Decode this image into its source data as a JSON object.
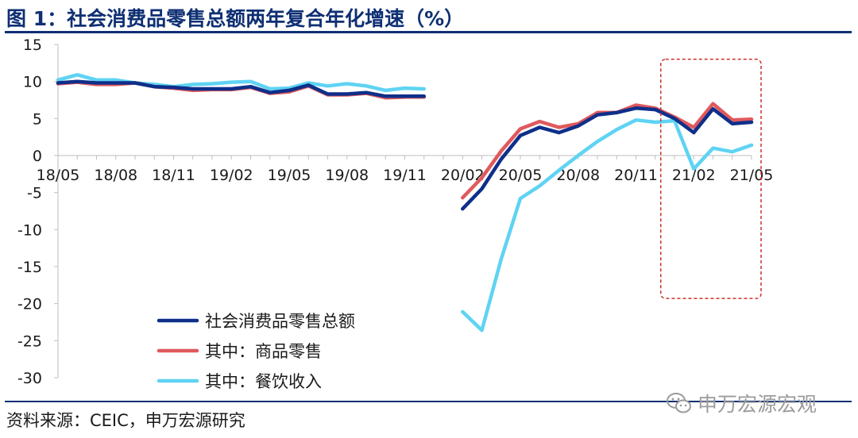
{
  "figure": {
    "title": "图 1：社会消费品零售总额两年复合年化增速（%）",
    "source": "资料来源：CEIC，申万宏源研究",
    "watermark": "申万宏源宏观"
  },
  "colors": {
    "title": "#0e2f73",
    "series_total": "#0e2f8a",
    "series_goods": "#e0595d",
    "series_catering": "#5fd3f3",
    "highlight_box": "#c9302c",
    "grid": "#d9d9d9"
  },
  "chart_data": {
    "type": "line",
    "title": "社会消费品零售总额两年复合年化增速（%）",
    "xlabel": "",
    "ylabel": "",
    "ylim": [
      -30,
      15
    ],
    "yticks": [
      15,
      10,
      5,
      0,
      -5,
      -10,
      -15,
      -20,
      -25,
      -30
    ],
    "grid": false,
    "legend_position": "bottom-left",
    "x": [
      "18/05",
      "18/06",
      "18/07",
      "18/08",
      "18/09",
      "18/10",
      "18/11",
      "18/12",
      "19/01",
      "19/02",
      "19/03",
      "19/04",
      "19/05",
      "19/06",
      "19/07",
      "19/08",
      "19/09",
      "19/10",
      "19/11",
      "19/12",
      "20/01",
      "20/02",
      "20/03",
      "20/04",
      "20/05",
      "20/06",
      "20/07",
      "20/08",
      "20/09",
      "20/10",
      "20/11",
      "20/12",
      "21/01",
      "21/02",
      "21/03",
      "21/04",
      "21/05"
    ],
    "xtick_labels": [
      "18/05",
      "18/08",
      "18/11",
      "19/02",
      "19/05",
      "19/08",
      "19/11",
      "20/02",
      "20/05",
      "20/08",
      "20/11",
      "21/02",
      "21/05"
    ],
    "series": [
      {
        "name": "社会消费品零售总额",
        "key": "total",
        "values": [
          9.8,
          10.0,
          9.8,
          9.8,
          9.8,
          9.3,
          9.2,
          9.0,
          9.0,
          9.0,
          9.3,
          8.5,
          8.8,
          9.5,
          8.3,
          8.3,
          8.5,
          8.0,
          8.0,
          8.0,
          null,
          -7.2,
          -4.5,
          -0.5,
          2.7,
          3.8,
          3.1,
          4.0,
          5.5,
          5.8,
          6.4,
          6.2,
          5.0,
          3.1,
          6.3,
          4.3,
          4.5
        ]
      },
      {
        "name": "其中：商品零售",
        "key": "goods",
        "values": [
          9.7,
          9.9,
          9.6,
          9.6,
          9.8,
          9.3,
          9.1,
          8.8,
          8.9,
          8.9,
          9.2,
          8.4,
          8.6,
          9.4,
          8.2,
          8.2,
          8.4,
          7.8,
          7.9,
          7.9,
          null,
          -5.7,
          -3.0,
          0.6,
          3.6,
          4.6,
          3.8,
          4.3,
          5.8,
          5.8,
          6.8,
          6.4,
          5.2,
          3.8,
          7.0,
          4.8,
          4.9
        ]
      },
      {
        "name": "其中：餐饮收入",
        "key": "catering",
        "values": [
          10.2,
          10.9,
          10.2,
          10.2,
          9.8,
          9.6,
          9.3,
          9.6,
          9.7,
          9.9,
          10.0,
          9.0,
          9.1,
          9.8,
          9.4,
          9.7,
          9.4,
          8.8,
          9.1,
          9.0,
          null,
          -21.1,
          -23.6,
          -14.0,
          -5.8,
          -4.1,
          -2.0,
          0.0,
          1.9,
          3.5,
          4.8,
          4.5,
          4.7,
          -1.8,
          1.0,
          0.5,
          1.4
        ]
      }
    ],
    "annotations": [
      {
        "type": "dashed-box",
        "x_from": "20/12",
        "x_to": "21/05",
        "y_from": -19.3,
        "y_to": 13
      }
    ]
  }
}
